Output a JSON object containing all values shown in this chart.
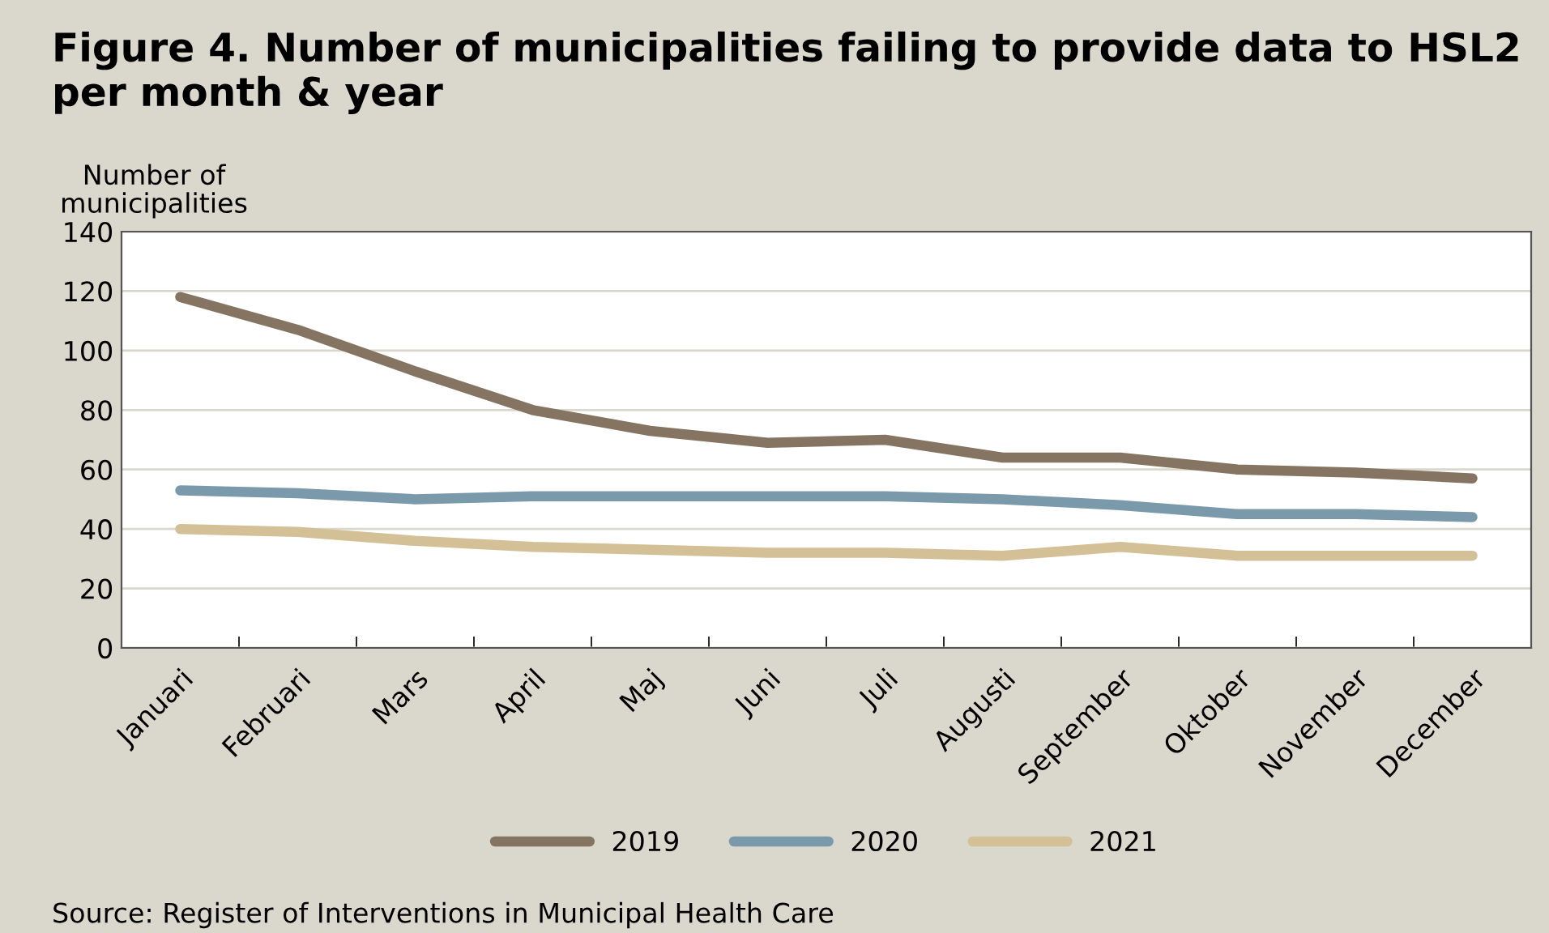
{
  "chart_data": {
    "type": "line",
    "title": "Figure 4. Number of municipalities failing to provide data to HSL2 per month & year",
    "ylabel": "Number of\nmunicipalities",
    "categories": [
      "Januari",
      "Februari",
      "Mars",
      "April",
      "Maj",
      "Juni",
      "Juli",
      "Augusti",
      "September",
      "Oktober",
      "November",
      "December"
    ],
    "series": [
      {
        "name": "2019",
        "color": "#857462",
        "values": [
          118,
          107,
          93,
          80,
          73,
          69,
          70,
          64,
          64,
          60,
          59,
          57
        ]
      },
      {
        "name": "2020",
        "color": "#7a9aab",
        "values": [
          53,
          52,
          50,
          51,
          51,
          51,
          51,
          50,
          48,
          45,
          45,
          44
        ]
      },
      {
        "name": "2021",
        "color": "#d4c096",
        "values": [
          40,
          39,
          36,
          34,
          33,
          32,
          32,
          31,
          34,
          31,
          31,
          31
        ]
      }
    ],
    "ylim": [
      0,
      140
    ],
    "yticks": [
      0,
      20,
      40,
      60,
      80,
      100,
      120,
      140
    ],
    "grid": "y",
    "legend": "bottom",
    "marker": "none",
    "line_style": "solid",
    "annotations": [
      "Source: Register of Interventions in Municipal Health Care"
    ]
  }
}
